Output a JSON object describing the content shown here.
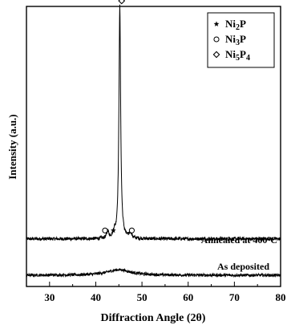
{
  "chart_data": {
    "type": "line",
    "title": "",
    "xlabel": "Diffraction Angle (2θ)",
    "ylabel": "Intensity (a.u.)",
    "xlim": [
      25,
      80
    ],
    "x_ticks": [
      30,
      40,
      50,
      60,
      70,
      80
    ],
    "y_ticks": [],
    "grid": false,
    "legend": {
      "position": "top-right",
      "entries": [
        {
          "marker": "star",
          "pre": "Ni",
          "sub1": "2",
          "mid": "P",
          "sub2": ""
        },
        {
          "marker": "circle",
          "pre": "Ni",
          "sub1": "3",
          "mid": "P",
          "sub2": ""
        },
        {
          "marker": "diamond",
          "pre": "Ni",
          "sub1": "5",
          "mid": "P",
          "sub2": "4"
        }
      ]
    },
    "series": [
      {
        "label_pre": "Annealed at 400",
        "label_sup": "o",
        "label_post": "C",
        "baseline": 0.17,
        "noise": 0.006,
        "peaks": [
          {
            "x": 45.2,
            "height": 0.83,
            "width": 0.22
          },
          {
            "x": 42.6,
            "height": 0.025,
            "width": 0.25
          },
          {
            "x": 44.0,
            "height": 0.02,
            "width": 0.25
          },
          {
            "x": 47.5,
            "height": 0.02,
            "width": 0.3
          }
        ],
        "markers": [
          {
            "type": "circle",
            "x": 42.0,
            "y": 0.2
          },
          {
            "type": "star",
            "x": 43.8,
            "y": 0.2
          },
          {
            "type": "circle",
            "x": 47.8,
            "y": 0.2
          },
          {
            "type": "diamond",
            "x": 45.6,
            "y": 1.02
          }
        ]
      },
      {
        "label": "As deposited",
        "baseline": 0.04,
        "noise": 0.005,
        "peaks": [
          {
            "x": 45.0,
            "height": 0.02,
            "width": 3.0
          }
        ],
        "markers": []
      }
    ]
  }
}
